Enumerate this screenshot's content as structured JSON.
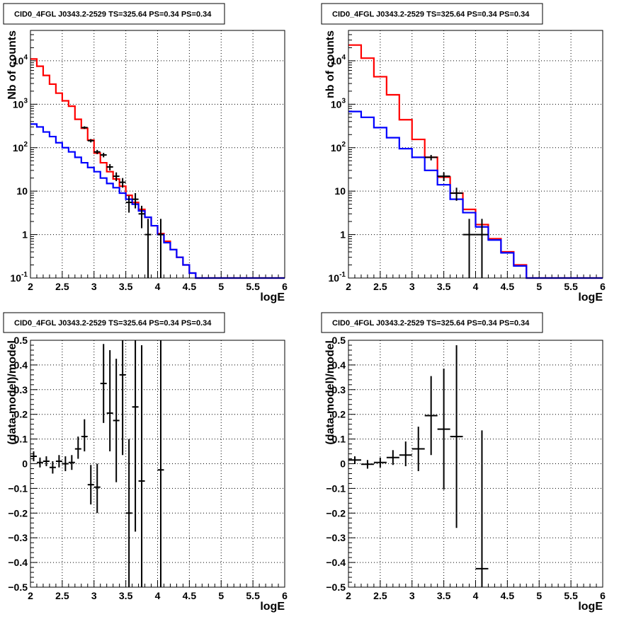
{
  "chart_data": [
    {
      "type": "histogram",
      "title": "CID0_4FGL J0343.2-2529 TS=325.64 PS=0.34 PS=0.34",
      "xlabel": "logE",
      "ylabel": "Nb of counts",
      "xlim": [
        2,
        6
      ],
      "ylim": [
        0.1,
        50000
      ],
      "log_y": true,
      "grid": true,
      "x_ticks": [
        "2",
        "2.5",
        "3",
        "3.5",
        "4",
        "4.5",
        "5",
        "5.5",
        "6"
      ],
      "y_ticks": [
        {
          "v": 0.1,
          "label": "10",
          "exp": "-1"
        },
        {
          "v": 1,
          "label": "1",
          "exp": ""
        },
        {
          "v": 10,
          "label": "10",
          "exp": ""
        },
        {
          "v": 100,
          "label": "10",
          "exp": "2"
        },
        {
          "v": 1000,
          "label": "10",
          "exp": "3"
        },
        {
          "v": 10000,
          "label": "10",
          "exp": "4"
        }
      ],
      "bin_edges": [
        2.0,
        2.1,
        2.2,
        2.3,
        2.4,
        2.5,
        2.6,
        2.7,
        2.8,
        2.9,
        3.0,
        3.1,
        3.2,
        3.3,
        3.4,
        3.5,
        3.6,
        3.7,
        3.8,
        3.9,
        4.0,
        4.1,
        4.2,
        4.3,
        4.4,
        4.5,
        4.6,
        4.7,
        4.8,
        4.9,
        5.0,
        5.1,
        5.2,
        5.3,
        5.4,
        5.5,
        5.6,
        5.7,
        5.8,
        5.9,
        6.0
      ],
      "series": [
        {
          "color": "#ff0000",
          "values": [
            11000,
            7500,
            4600,
            2900,
            1800,
            1200,
            900,
            450,
            280,
            150,
            75,
            45,
            28,
            19,
            13,
            8,
            5.5,
            3.8,
            2.5,
            1.6,
            1.05,
            0.7,
            0.45,
            0.3,
            0.2,
            0.13,
            0.1,
            0.1,
            0.1,
            0.1,
            0.1,
            0.1,
            0.1,
            0.1,
            0.1,
            0.1,
            0.1,
            0.1,
            0.1,
            0.1
          ]
        },
        {
          "color": "#0000ff",
          "values": [
            350,
            300,
            230,
            180,
            130,
            100,
            80,
            60,
            45,
            35,
            28,
            20,
            15,
            12,
            9,
            6.5,
            5,
            3.5,
            2.5,
            1.6,
            1.0,
            0.65,
            0.45,
            0.3,
            0.2,
            0.13,
            0.1,
            0.1,
            0.1,
            0.1,
            0.1,
            0.1,
            0.1,
            0.1,
            0.1,
            0.1,
            0.1,
            0.1,
            0.1,
            0.1
          ]
        }
      ],
      "points": [
        {
          "x": 2.85,
          "y": 290,
          "xerr": 0.05,
          "ylo": 270,
          "yhi": 310
        },
        {
          "x": 2.95,
          "y": 145,
          "xerr": 0.05,
          "ylo": 132,
          "yhi": 158
        },
        {
          "x": 3.05,
          "y": 80,
          "xerr": 0.05,
          "ylo": 71,
          "yhi": 89
        },
        {
          "x": 3.15,
          "y": 68,
          "xerr": 0.05,
          "ylo": 60,
          "yhi": 76
        },
        {
          "x": 3.25,
          "y": 36,
          "xerr": 0.05,
          "ylo": 30,
          "yhi": 42
        },
        {
          "x": 3.35,
          "y": 22,
          "xerr": 0.05,
          "ylo": 17,
          "yhi": 27
        },
        {
          "x": 3.45,
          "y": 16,
          "xerr": 0.05,
          "ylo": 12,
          "yhi": 20
        },
        {
          "x": 3.55,
          "y": 5.5,
          "xerr": 0.05,
          "ylo": 3.2,
          "yhi": 7.8
        },
        {
          "x": 3.65,
          "y": 6.5,
          "xerr": 0.05,
          "ylo": 4.0,
          "yhi": 9.0
        },
        {
          "x": 3.75,
          "y": 3.0,
          "xerr": 0.05,
          "ylo": 1.4,
          "yhi": 4.6
        },
        {
          "x": 3.85,
          "y": 1.0,
          "xerr": 0.05,
          "ylo": 0.1,
          "yhi": 2.3
        },
        {
          "x": 4.05,
          "y": 1.0,
          "xerr": 0.05,
          "ylo": 0.1,
          "yhi": 2.3
        }
      ]
    },
    {
      "type": "histogram",
      "title": "CID0_4FGL J0343.2-2529 TS=325.64 PS=0.34 PS=0.34",
      "xlabel": "logE",
      "ylabel": "nb of counts",
      "xlim": [
        2,
        6
      ],
      "ylim": [
        0.1,
        50000
      ],
      "log_y": true,
      "grid": true,
      "x_ticks": [
        "2",
        "2.5",
        "3",
        "3.5",
        "4",
        "4.5",
        "5",
        "5.5",
        "6"
      ],
      "y_ticks": [
        {
          "v": 0.1,
          "label": "10",
          "exp": "-1"
        },
        {
          "v": 1,
          "label": "1",
          "exp": ""
        },
        {
          "v": 10,
          "label": "10",
          "exp": ""
        },
        {
          "v": 100,
          "label": "10",
          "exp": "2"
        },
        {
          "v": 1000,
          "label": "10",
          "exp": "3"
        },
        {
          "v": 10000,
          "label": "10",
          "exp": "4"
        }
      ],
      "bin_edges": [
        2.0,
        2.2,
        2.4,
        2.6,
        2.8,
        3.0,
        3.2,
        3.4,
        3.6,
        3.8,
        4.0,
        4.2,
        4.4,
        4.6,
        4.8,
        5.0,
        5.2,
        5.4,
        5.6,
        5.8,
        6.0
      ],
      "series": [
        {
          "color": "#ff0000",
          "values": [
            23000,
            11500,
            4300,
            1650,
            440,
            155,
            60,
            21,
            9,
            3.8,
            1.7,
            0.8,
            0.4,
            0.2,
            0.1,
            0.1,
            0.1,
            0.1,
            0.1,
            0.1
          ]
        },
        {
          "color": "#0000ff",
          "values": [
            680,
            500,
            290,
            170,
            95,
            60,
            30,
            14,
            6.5,
            3.2,
            1.5,
            0.75,
            0.38,
            0.19,
            0.1,
            0.1,
            0.1,
            0.1,
            0.1,
            0.1
          ]
        }
      ],
      "points": [
        {
          "x": 3.3,
          "y": 60,
          "xerr": 0.1,
          "ylo": 51,
          "yhi": 68
        },
        {
          "x": 3.5,
          "y": 22,
          "xerr": 0.1,
          "ylo": 17,
          "yhi": 27
        },
        {
          "x": 3.7,
          "y": 9,
          "xerr": 0.1,
          "ylo": 6,
          "yhi": 12
        },
        {
          "x": 3.9,
          "y": 1.0,
          "xerr": 0.1,
          "ylo": 0.1,
          "yhi": 2.3
        },
        {
          "x": 4.1,
          "y": 1.0,
          "xerr": 0.1,
          "ylo": 0.1,
          "yhi": 2.3
        }
      ]
    },
    {
      "type": "scatter",
      "title": "CID0_4FGL J0343.2-2529 TS=325.64 PS=0.34 PS=0.34",
      "xlabel": "logE",
      "ylabel": "(data-model)/model",
      "xlim": [
        2,
        6
      ],
      "ylim": [
        -0.5,
        0.5
      ],
      "log_y": false,
      "grid": true,
      "x_ticks": [
        "2",
        "2.5",
        "3",
        "3.5",
        "4",
        "4.5",
        "5",
        "5.5",
        "6"
      ],
      "y_ticks": [
        {
          "v": -0.5,
          "label": "−0.5",
          "exp": ""
        },
        {
          "v": -0.4,
          "label": "−0.4",
          "exp": ""
        },
        {
          "v": -0.3,
          "label": "−0.3",
          "exp": ""
        },
        {
          "v": -0.2,
          "label": "−0.2",
          "exp": ""
        },
        {
          "v": -0.1,
          "label": "−0.1",
          "exp": ""
        },
        {
          "v": 0,
          "label": "0",
          "exp": ""
        },
        {
          "v": 0.1,
          "label": "0.1",
          "exp": ""
        },
        {
          "v": 0.2,
          "label": "0.2",
          "exp": ""
        },
        {
          "v": 0.3,
          "label": "0.3",
          "exp": ""
        },
        {
          "v": 0.4,
          "label": "0.4",
          "exp": ""
        },
        {
          "v": 0.5,
          "label": "0.5",
          "exp": ""
        }
      ],
      "points": [
        {
          "x": 2.05,
          "y": 0.03,
          "xerr": 0.05,
          "ylo": 0.01,
          "yhi": 0.05
        },
        {
          "x": 2.15,
          "y": 0.005,
          "xerr": 0.05,
          "ylo": -0.015,
          "yhi": 0.025
        },
        {
          "x": 2.25,
          "y": 0.01,
          "xerr": 0.05,
          "ylo": -0.01,
          "yhi": 0.03
        },
        {
          "x": 2.35,
          "y": -0.015,
          "xerr": 0.05,
          "ylo": -0.04,
          "yhi": 0.01
        },
        {
          "x": 2.45,
          "y": 0.01,
          "xerr": 0.05,
          "ylo": -0.015,
          "yhi": 0.035
        },
        {
          "x": 2.55,
          "y": 0.0,
          "xerr": 0.05,
          "ylo": -0.03,
          "yhi": 0.03
        },
        {
          "x": 2.65,
          "y": 0.005,
          "xerr": 0.05,
          "ylo": -0.025,
          "yhi": 0.035
        },
        {
          "x": 2.75,
          "y": 0.06,
          "xerr": 0.05,
          "ylo": 0.02,
          "yhi": 0.11
        },
        {
          "x": 2.85,
          "y": 0.11,
          "xerr": 0.05,
          "ylo": 0.05,
          "yhi": 0.18
        },
        {
          "x": 2.95,
          "y": -0.085,
          "xerr": 0.05,
          "ylo": -0.165,
          "yhi": -0.005
        },
        {
          "x": 3.05,
          "y": -0.095,
          "xerr": 0.05,
          "ylo": -0.2,
          "yhi": 0.0
        },
        {
          "x": 3.15,
          "y": 0.325,
          "xerr": 0.05,
          "ylo": 0.165,
          "yhi": 0.485
        },
        {
          "x": 3.25,
          "y": 0.205,
          "xerr": 0.05,
          "ylo": 0.05,
          "yhi": 0.46
        },
        {
          "x": 3.35,
          "y": 0.175,
          "xerr": 0.05,
          "ylo": -0.075,
          "yhi": 0.425
        },
        {
          "x": 3.45,
          "y": 0.36,
          "xerr": 0.05,
          "ylo": 0.035,
          "yhi": 0.5
        },
        {
          "x": 3.55,
          "y": -0.2,
          "xerr": 0.05,
          "ylo": -0.5,
          "yhi": 0.1
        },
        {
          "x": 3.65,
          "y": 0.23,
          "xerr": 0.05,
          "ylo": -0.275,
          "yhi": 0.5
        },
        {
          "x": 3.75,
          "y": -0.07,
          "xerr": 0.05,
          "ylo": -0.5,
          "yhi": 0.48
        },
        {
          "x": 4.05,
          "y": -0.025,
          "xerr": 0.05,
          "ylo": -0.5,
          "yhi": 0.5
        }
      ]
    },
    {
      "type": "scatter",
      "title": "CID0_4FGL J0343.2-2529 TS=325.64 PS=0.34 PS=0.34",
      "xlabel": "logE",
      "ylabel": "(data-model)/model",
      "xlim": [
        2,
        6
      ],
      "ylim": [
        -0.5,
        0.5
      ],
      "log_y": false,
      "grid": true,
      "x_ticks": [
        "2",
        "2.5",
        "3",
        "3.5",
        "4",
        "4.5",
        "5",
        "5.5",
        "6"
      ],
      "y_ticks": [
        {
          "v": -0.5,
          "label": "−0.5",
          "exp": ""
        },
        {
          "v": -0.4,
          "label": "−0.4",
          "exp": ""
        },
        {
          "v": -0.3,
          "label": "−0.3",
          "exp": ""
        },
        {
          "v": -0.2,
          "label": "−0.2",
          "exp": ""
        },
        {
          "v": -0.1,
          "label": "−0.1",
          "exp": ""
        },
        {
          "v": 0,
          "label": "0",
          "exp": ""
        },
        {
          "v": 0.1,
          "label": "0.1",
          "exp": ""
        },
        {
          "v": 0.2,
          "label": "0.2",
          "exp": ""
        },
        {
          "v": 0.3,
          "label": "0.3",
          "exp": ""
        },
        {
          "v": 0.4,
          "label": "0.4",
          "exp": ""
        },
        {
          "v": 0.5,
          "label": "0.5",
          "exp": ""
        }
      ],
      "points": [
        {
          "x": 2.1,
          "y": 0.015,
          "xerr": 0.1,
          "ylo": 0.0,
          "yhi": 0.03
        },
        {
          "x": 2.3,
          "y": -0.002,
          "xerr": 0.1,
          "ylo": -0.02,
          "yhi": 0.015
        },
        {
          "x": 2.5,
          "y": 0.005,
          "xerr": 0.1,
          "ylo": -0.015,
          "yhi": 0.025
        },
        {
          "x": 2.7,
          "y": 0.025,
          "xerr": 0.1,
          "ylo": -0.005,
          "yhi": 0.055
        },
        {
          "x": 2.9,
          "y": 0.035,
          "xerr": 0.1,
          "ylo": -0.01,
          "yhi": 0.09
        },
        {
          "x": 3.1,
          "y": 0.06,
          "xerr": 0.1,
          "ylo": -0.03,
          "yhi": 0.15
        },
        {
          "x": 3.3,
          "y": 0.195,
          "xerr": 0.1,
          "ylo": 0.035,
          "yhi": 0.355
        },
        {
          "x": 3.5,
          "y": 0.14,
          "xerr": 0.1,
          "ylo": -0.105,
          "yhi": 0.385
        },
        {
          "x": 3.7,
          "y": 0.11,
          "xerr": 0.1,
          "ylo": -0.26,
          "yhi": 0.48
        },
        {
          "x": 4.1,
          "y": -0.425,
          "xerr": 0.1,
          "ylo": -0.5,
          "yhi": 0.135
        }
      ]
    }
  ]
}
